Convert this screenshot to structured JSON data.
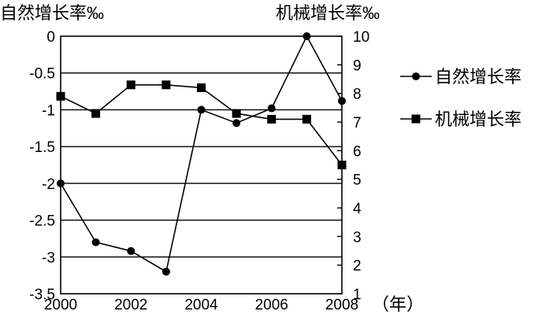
{
  "chart_data": {
    "type": "line",
    "x_unit_label": "（年）",
    "x_ticks": [
      "2000",
      "2002",
      "2004",
      "2006",
      "2008"
    ],
    "x_range": [
      2000,
      2008
    ],
    "left_axis": {
      "title": "自然增长率‰",
      "range": [
        -3.5,
        0
      ],
      "ticks": [
        "0",
        "-0.5",
        "-1",
        "-1.5",
        "-2",
        "-2.5",
        "-3",
        "-3.5"
      ]
    },
    "right_axis": {
      "title": "机械增长率‰",
      "range": [
        1,
        10
      ],
      "ticks": [
        "10",
        "9",
        "8",
        "7",
        "6",
        "5",
        "4",
        "3",
        "2",
        "1"
      ]
    },
    "grid": "horizontal",
    "legend_position": "right",
    "series": [
      {
        "name": "自然增长率",
        "axis": "left",
        "marker": "circle",
        "color": "#000000",
        "x": [
          2000,
          2001,
          2002,
          2003,
          2004,
          2005,
          2006,
          2007,
          2008
        ],
        "values": [
          -2.0,
          -2.8,
          -2.92,
          -3.2,
          -1.0,
          -1.18,
          -0.98,
          0.0,
          -0.88
        ]
      },
      {
        "name": "机械增长率",
        "axis": "right",
        "marker": "square",
        "color": "#000000",
        "x": [
          2000,
          2001,
          2002,
          2003,
          2004,
          2005,
          2006,
          2007,
          2008
        ],
        "values": [
          7.9,
          7.3,
          8.3,
          8.3,
          8.2,
          7.3,
          7.1,
          7.1,
          5.5
        ]
      }
    ]
  }
}
